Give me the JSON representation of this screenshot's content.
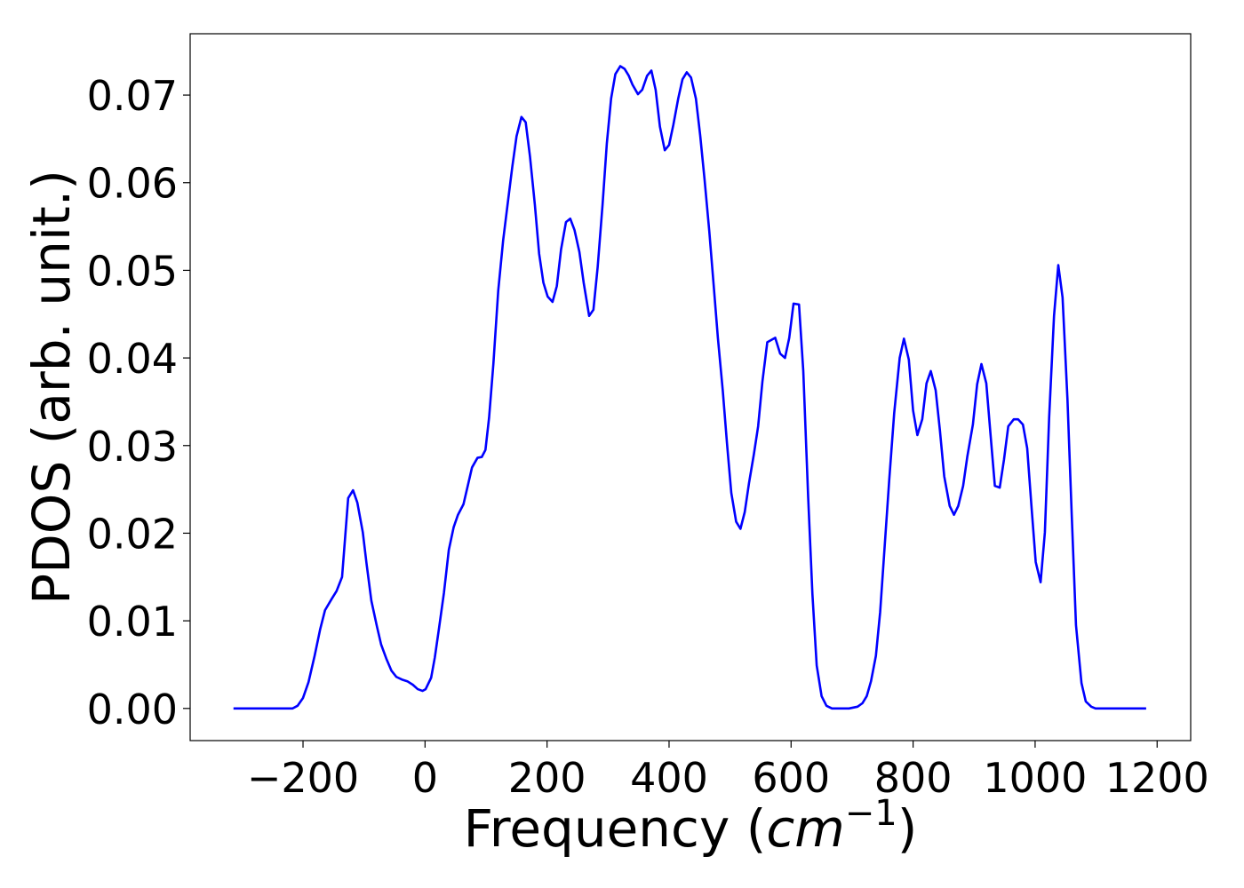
{
  "chart_data": {
    "type": "line",
    "xlabel": [
      "Frequency (",
      "cm",
      "−1",
      ")"
    ],
    "ylabel": "PDOS (arb. unit.)",
    "xlim": [
      -385,
      1255
    ],
    "ylim": [
      -0.00367,
      0.077
    ],
    "xticks": [
      {
        "value": -200,
        "label": "−200"
      },
      0,
      200,
      400,
      600,
      800,
      1000,
      1200
    ],
    "yticks": [
      {
        "value": 0,
        "label": "0.00"
      },
      {
        "value": 0.01,
        "label": "0.01"
      },
      {
        "value": 0.02,
        "label": "0.02"
      },
      {
        "value": 0.03,
        "label": "0.03"
      },
      {
        "value": 0.04,
        "label": "0.04"
      },
      {
        "value": 0.05,
        "label": "0.05"
      },
      {
        "value": 0.06,
        "label": "0.06"
      },
      {
        "value": 0.07,
        "label": "0.07"
      }
    ],
    "grid": false,
    "series": [
      {
        "color": "#0000ff",
        "x": [
          -314,
          -217,
          -209,
          -200,
          -191,
          -181,
          -172,
          -164,
          -153,
          -145,
          -136,
          -126,
          -118,
          -111,
          -102,
          -96,
          -88,
          -79,
          -72,
          -63,
          -55,
          -47,
          -38,
          -29,
          -20,
          -12,
          -4,
          1,
          10,
          16,
          23,
          31,
          39,
          47,
          54,
          63,
          70,
          77,
          86,
          93,
          99,
          105,
          112,
          120,
          128,
          136,
          143,
          150,
          158,
          165,
          172,
          180,
          187,
          194,
          201,
          209,
          216,
          223,
          231,
          238,
          245,
          253,
          260,
          269,
          276,
          283,
          291,
          298,
          305,
          312,
          320,
          327,
          334,
          340,
          349,
          356,
          364,
          371,
          378,
          385,
          393,
          400,
          407,
          415,
          422,
          429,
          436,
          444,
          451,
          458,
          466,
          473,
          480,
          488,
          495,
          502,
          510,
          517,
          524,
          531,
          539,
          546,
          553,
          561,
          574,
          582,
          590,
          597,
          604,
          613,
          620,
          628,
          635,
          642,
          650,
          658,
          667,
          695,
          709,
          717,
          724,
          731,
          739,
          746,
          753,
          761,
          769,
          778,
          785,
          793,
          800,
          807,
          815,
          822,
          829,
          837,
          844,
          851,
          860,
          867,
          874,
          882,
          889,
          898,
          905,
          912,
          920,
          927,
          934,
          942,
          949,
          956,
          965,
          972,
          980,
          987,
          994,
          1001,
          1009,
          1016,
          1023,
          1031,
          1038,
          1045,
          1053,
          1060,
          1067,
          1076,
          1083,
          1092,
          1099,
          1182
        ],
        "values": [
          0,
          0,
          0.0003,
          0.0012,
          0.003,
          0.006,
          0.009,
          0.0112,
          0.0125,
          0.0134,
          0.015,
          0.024,
          0.0249,
          0.0235,
          0.0201,
          0.0166,
          0.0123,
          0.0094,
          0.0073,
          0.0056,
          0.0043,
          0.0036,
          0.0033,
          0.0031,
          0.0027,
          0.0022,
          0.002,
          0.0022,
          0.0035,
          0.0058,
          0.0092,
          0.0132,
          0.0181,
          0.0207,
          0.0221,
          0.0233,
          0.0254,
          0.0275,
          0.0286,
          0.0287,
          0.0295,
          0.0332,
          0.0393,
          0.0477,
          0.0534,
          0.0579,
          0.0618,
          0.0653,
          0.0675,
          0.0669,
          0.063,
          0.0575,
          0.0519,
          0.0486,
          0.047,
          0.0464,
          0.0482,
          0.0524,
          0.0555,
          0.0559,
          0.0546,
          0.0521,
          0.0486,
          0.0448,
          0.0455,
          0.0504,
          0.0575,
          0.0645,
          0.0696,
          0.0724,
          0.0733,
          0.073,
          0.0722,
          0.0712,
          0.0701,
          0.0706,
          0.0722,
          0.0728,
          0.0706,
          0.0664,
          0.0637,
          0.0643,
          0.0666,
          0.0696,
          0.0718,
          0.0726,
          0.072,
          0.0696,
          0.0654,
          0.0605,
          0.0544,
          0.0484,
          0.0423,
          0.0363,
          0.0302,
          0.0246,
          0.0213,
          0.0205,
          0.0224,
          0.0257,
          0.029,
          0.0322,
          0.0373,
          0.0418,
          0.0423,
          0.0405,
          0.04,
          0.0423,
          0.0462,
          0.0461,
          0.0385,
          0.0241,
          0.013,
          0.0049,
          0.0014,
          0.0003,
          0,
          0,
          0.0002,
          0.0006,
          0.0014,
          0.0031,
          0.006,
          0.011,
          0.0181,
          0.0262,
          0.0337,
          0.04,
          0.0422,
          0.0398,
          0.034,
          0.0312,
          0.033,
          0.0371,
          0.0385,
          0.0363,
          0.0317,
          0.0265,
          0.0231,
          0.0221,
          0.0231,
          0.0254,
          0.0288,
          0.0324,
          0.037,
          0.0393,
          0.0371,
          0.0312,
          0.0254,
          0.0252,
          0.0284,
          0.0322,
          0.033,
          0.033,
          0.0324,
          0.0297,
          0.0231,
          0.0167,
          0.0144,
          0.0201,
          0.0332,
          0.0448,
          0.0506,
          0.0469,
          0.0353,
          0.0221,
          0.0095,
          0.0029,
          0.0008,
          0.0002,
          0,
          0
        ]
      }
    ]
  }
}
